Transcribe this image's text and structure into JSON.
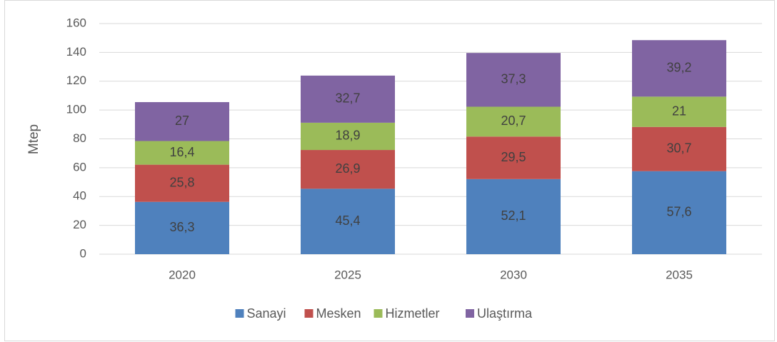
{
  "chart_data": {
    "type": "stacked_bar",
    "y_label": "Mtep",
    "categories": [
      "2020",
      "2025",
      "2030",
      "2035"
    ],
    "series": [
      {
        "name": "Sanayi",
        "color": "#4f81bd",
        "values": [
          36.3,
          45.4,
          52.1,
          57.6
        ],
        "value_labels": [
          "36,3",
          "45,4",
          "52,1",
          "57,6"
        ]
      },
      {
        "name": "Mesken",
        "color": "#c0504d",
        "values": [
          25.8,
          26.9,
          29.5,
          30.7
        ],
        "value_labels": [
          "25,8",
          "26,9",
          "29,5",
          "30,7"
        ]
      },
      {
        "name": "Hizmetler",
        "color": "#9bbb59",
        "values": [
          16.4,
          18.9,
          20.7,
          21
        ],
        "value_labels": [
          "16,4",
          "18,9",
          "20,7",
          "21"
        ]
      },
      {
        "name": "Ulaştırma",
        "color": "#8064a2",
        "values": [
          27,
          32.7,
          37.3,
          39.2
        ],
        "value_labels": [
          "27",
          "32,7",
          "37,3",
          "39,2"
        ]
      }
    ],
    "ylim": [
      0,
      160
    ],
    "yticks": [
      0,
      20,
      40,
      60,
      80,
      100,
      120,
      140,
      160
    ],
    "grid": true,
    "legend": "bottom"
  }
}
